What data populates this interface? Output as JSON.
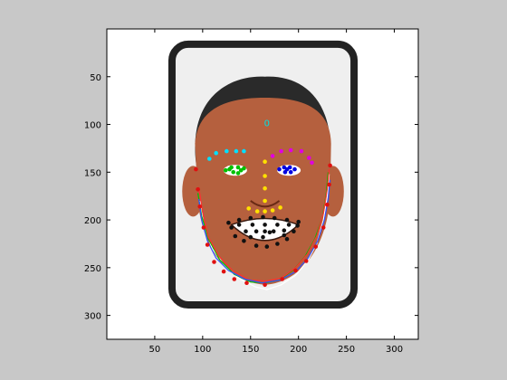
{
  "chart_data": {
    "type": "scatter",
    "title": "",
    "xlabel": "",
    "ylabel": "",
    "xlim": [
      0,
      325
    ],
    "ylim": [
      325,
      0
    ],
    "y_reversed": true,
    "grid": false,
    "legend": "none",
    "x_ticks": [
      50,
      100,
      150,
      200,
      250,
      300
    ],
    "y_ticks": [
      50,
      100,
      150,
      200,
      250,
      300
    ],
    "annotations": [
      {
        "text": "0",
        "x": 167,
        "y": 102,
        "color": "#00e0e0"
      }
    ],
    "image": {
      "description_items": [
        "rounded-case-frame",
        "cartoon-face"
      ],
      "skin_color": "#b5603e",
      "hair_color": "#2a2a2a",
      "frame_color": "#222222",
      "frame_inner_color": "#efefef"
    },
    "series": [
      {
        "color": "#00e0ff",
        "points": [
          [
            107,
            136
          ],
          [
            114,
            130
          ],
          [
            125,
            128
          ],
          [
            135,
            128
          ],
          [
            143,
            128
          ]
        ]
      },
      {
        "color": "#e000e0",
        "points": [
          [
            173,
            133
          ],
          [
            182,
            128
          ],
          [
            192,
            127
          ],
          [
            203,
            128
          ],
          [
            211,
            135
          ],
          [
            214,
            140
          ]
        ]
      },
      {
        "color": "#00c000",
        "points": [
          [
            124,
            148
          ],
          [
            130,
            145
          ],
          [
            137,
            145
          ],
          [
            143,
            146
          ],
          [
            132,
            150
          ],
          [
            137,
            151
          ],
          [
            128,
            147
          ],
          [
            140,
            148
          ]
        ]
      },
      {
        "color": "#0000e0",
        "points": [
          [
            180,
            147
          ],
          [
            185,
            145
          ],
          [
            191,
            145
          ],
          [
            196,
            147
          ],
          [
            186,
            150
          ],
          [
            192,
            150
          ],
          [
            188,
            147
          ]
        ]
      },
      {
        "color": "#ffe000",
        "points": [
          [
            165,
            139
          ],
          [
            165,
            154
          ],
          [
            165,
            167
          ],
          [
            165,
            180
          ],
          [
            148,
            188
          ],
          [
            157,
            191
          ],
          [
            165,
            191
          ],
          [
            173,
            190
          ],
          [
            181,
            187
          ]
        ]
      },
      {
        "color": "#111111",
        "points": [
          [
            127,
            203
          ],
          [
            138,
            200
          ],
          [
            150,
            198
          ],
          [
            163,
            197
          ],
          [
            175,
            198
          ],
          [
            188,
            200
          ],
          [
            200,
            202
          ],
          [
            138,
            205
          ],
          [
            152,
            205
          ],
          [
            165,
            205
          ],
          [
            178,
            205
          ],
          [
            190,
            205
          ],
          [
            145,
            212
          ],
          [
            156,
            212
          ],
          [
            165,
            212
          ],
          [
            174,
            212
          ],
          [
            185,
            211
          ],
          [
            130,
            208
          ],
          [
            134,
            217
          ],
          [
            143,
            222
          ],
          [
            156,
            227
          ],
          [
            167,
            228
          ],
          [
            178,
            225
          ],
          [
            188,
            220
          ],
          [
            195,
            212
          ],
          [
            199,
            206
          ],
          [
            163,
            218
          ],
          [
            185,
            216
          ],
          [
            150,
            218
          ],
          [
            170,
            213
          ]
        ]
      },
      {
        "color": "#e01010",
        "points": [
          [
            93,
            147
          ],
          [
            95,
            168
          ],
          [
            97,
            186
          ],
          [
            101,
            208
          ],
          [
            105,
            226
          ],
          [
            112,
            244
          ],
          [
            122,
            254
          ],
          [
            133,
            262
          ],
          [
            146,
            266
          ],
          [
            165,
            268
          ],
          [
            183,
            262
          ],
          [
            197,
            253
          ],
          [
            208,
            243
          ],
          [
            218,
            228
          ],
          [
            226,
            208
          ],
          [
            230,
            184
          ],
          [
            232,
            163
          ],
          [
            233,
            143
          ]
        ]
      }
    ],
    "lines": [
      {
        "color": "#ffffff",
        "points": [
          [
            97,
            180
          ],
          [
            101,
            205
          ],
          [
            110,
            230
          ],
          [
            123,
            248
          ],
          [
            139,
            262
          ],
          [
            155,
            270
          ],
          [
            167,
            273
          ],
          [
            182,
            268
          ],
          [
            197,
            258
          ],
          [
            210,
            242
          ],
          [
            219,
            225
          ],
          [
            226,
            200
          ],
          [
            230,
            176
          ],
          [
            232,
            152
          ]
        ]
      },
      {
        "color": "#00c000",
        "points": [
          [
            95,
            172
          ],
          [
            99,
            196
          ],
          [
            106,
            220
          ],
          [
            118,
            242
          ],
          [
            133,
            257
          ],
          [
            150,
            265
          ],
          [
            165,
            266
          ],
          [
            180,
            263
          ],
          [
            195,
            252
          ],
          [
            207,
            238
          ],
          [
            217,
            220
          ],
          [
            225,
            197
          ],
          [
            229,
            172
          ],
          [
            231,
            150
          ]
        ]
      },
      {
        "color": "#ff3030",
        "points": [
          [
            96,
            166
          ],
          [
            100,
            192
          ],
          [
            106,
            218
          ],
          [
            117,
            238
          ],
          [
            131,
            253
          ],
          [
            149,
            263
          ],
          [
            166,
            264
          ],
          [
            182,
            261
          ],
          [
            197,
            250
          ],
          [
            209,
            236
          ],
          [
            219,
            217
          ],
          [
            226,
            193
          ],
          [
            230,
            168
          ],
          [
            232,
            147
          ]
        ]
      },
      {
        "color": "#3050ff",
        "points": [
          [
            96,
            178
          ],
          [
            99,
            200
          ],
          [
            105,
            222
          ],
          [
            114,
            240
          ],
          [
            127,
            253
          ],
          [
            144,
            262
          ],
          [
            162,
            266
          ],
          [
            181,
            263
          ],
          [
            197,
            254
          ],
          [
            210,
            240
          ],
          [
            220,
            222
          ],
          [
            227,
            200
          ],
          [
            231,
            178
          ],
          [
            233,
            158
          ]
        ]
      }
    ]
  }
}
